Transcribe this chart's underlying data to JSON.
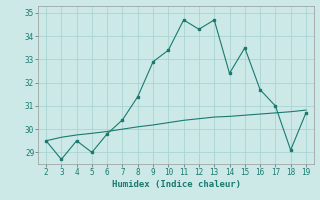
{
  "x": [
    2,
    3,
    4,
    5,
    6,
    7,
    8,
    9,
    10,
    11,
    12,
    13,
    14,
    15,
    16,
    17,
    18,
    19
  ],
  "y_humidex": [
    29.5,
    28.7,
    29.5,
    29.0,
    29.8,
    30.4,
    31.4,
    32.9,
    33.4,
    34.7,
    34.3,
    34.7,
    32.4,
    33.5,
    31.7,
    31.0,
    29.1,
    30.7
  ],
  "y_trend": [
    29.5,
    29.65,
    29.75,
    29.82,
    29.9,
    30.0,
    30.1,
    30.18,
    30.28,
    30.38,
    30.45,
    30.52,
    30.55,
    30.6,
    30.65,
    30.7,
    30.75,
    30.82
  ],
  "xlabel": "Humidex (Indice chaleur)",
  "background_color": "#cce9e8",
  "grid_color": "#aad4d2",
  "line_color": "#1a7a6e",
  "xlim": [
    1.5,
    19.5
  ],
  "ylim": [
    28.5,
    35.3
  ],
  "yticks": [
    29,
    30,
    31,
    32,
    33,
    34,
    35
  ],
  "xticks": [
    2,
    3,
    4,
    5,
    6,
    7,
    8,
    9,
    10,
    11,
    12,
    13,
    14,
    15,
    16,
    17,
    18,
    19
  ]
}
